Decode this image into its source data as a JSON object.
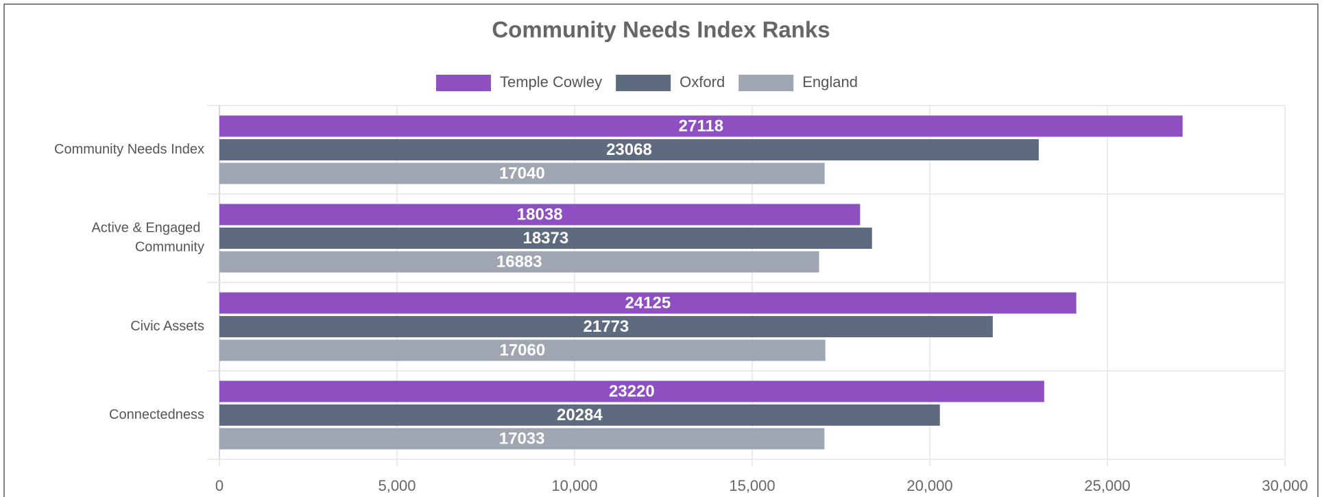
{
  "chart_data": {
    "type": "bar",
    "orientation": "horizontal",
    "title": "Community Needs Index Ranks",
    "categories": [
      "Community Needs Index",
      "Active & Engaged Community",
      "Civic Assets",
      "Connectedness"
    ],
    "series": [
      {
        "name": "Temple Cowley",
        "color": "#8e4fc1",
        "values": [
          27118,
          18038,
          24125,
          23220
        ]
      },
      {
        "name": "Oxford",
        "color": "#5e6a7d",
        "values": [
          23068,
          18373,
          21773,
          20284
        ]
      },
      {
        "name": "England",
        "color": "#9fa6b2",
        "values": [
          17040,
          16883,
          17060,
          17033
        ]
      }
    ],
    "xlim": [
      0,
      30000
    ],
    "xticks": [
      0,
      {
        "value": 5000,
        "label": "5,000"
      },
      {
        "value": 10000,
        "label": "10,000"
      },
      {
        "value": 15000,
        "label": "15,000"
      },
      {
        "value": 20000,
        "label": "20,000"
      },
      {
        "value": 25000,
        "label": "25,000"
      },
      {
        "value": 30000,
        "label": "30,000"
      }
    ],
    "grid": true,
    "legend": "top"
  }
}
